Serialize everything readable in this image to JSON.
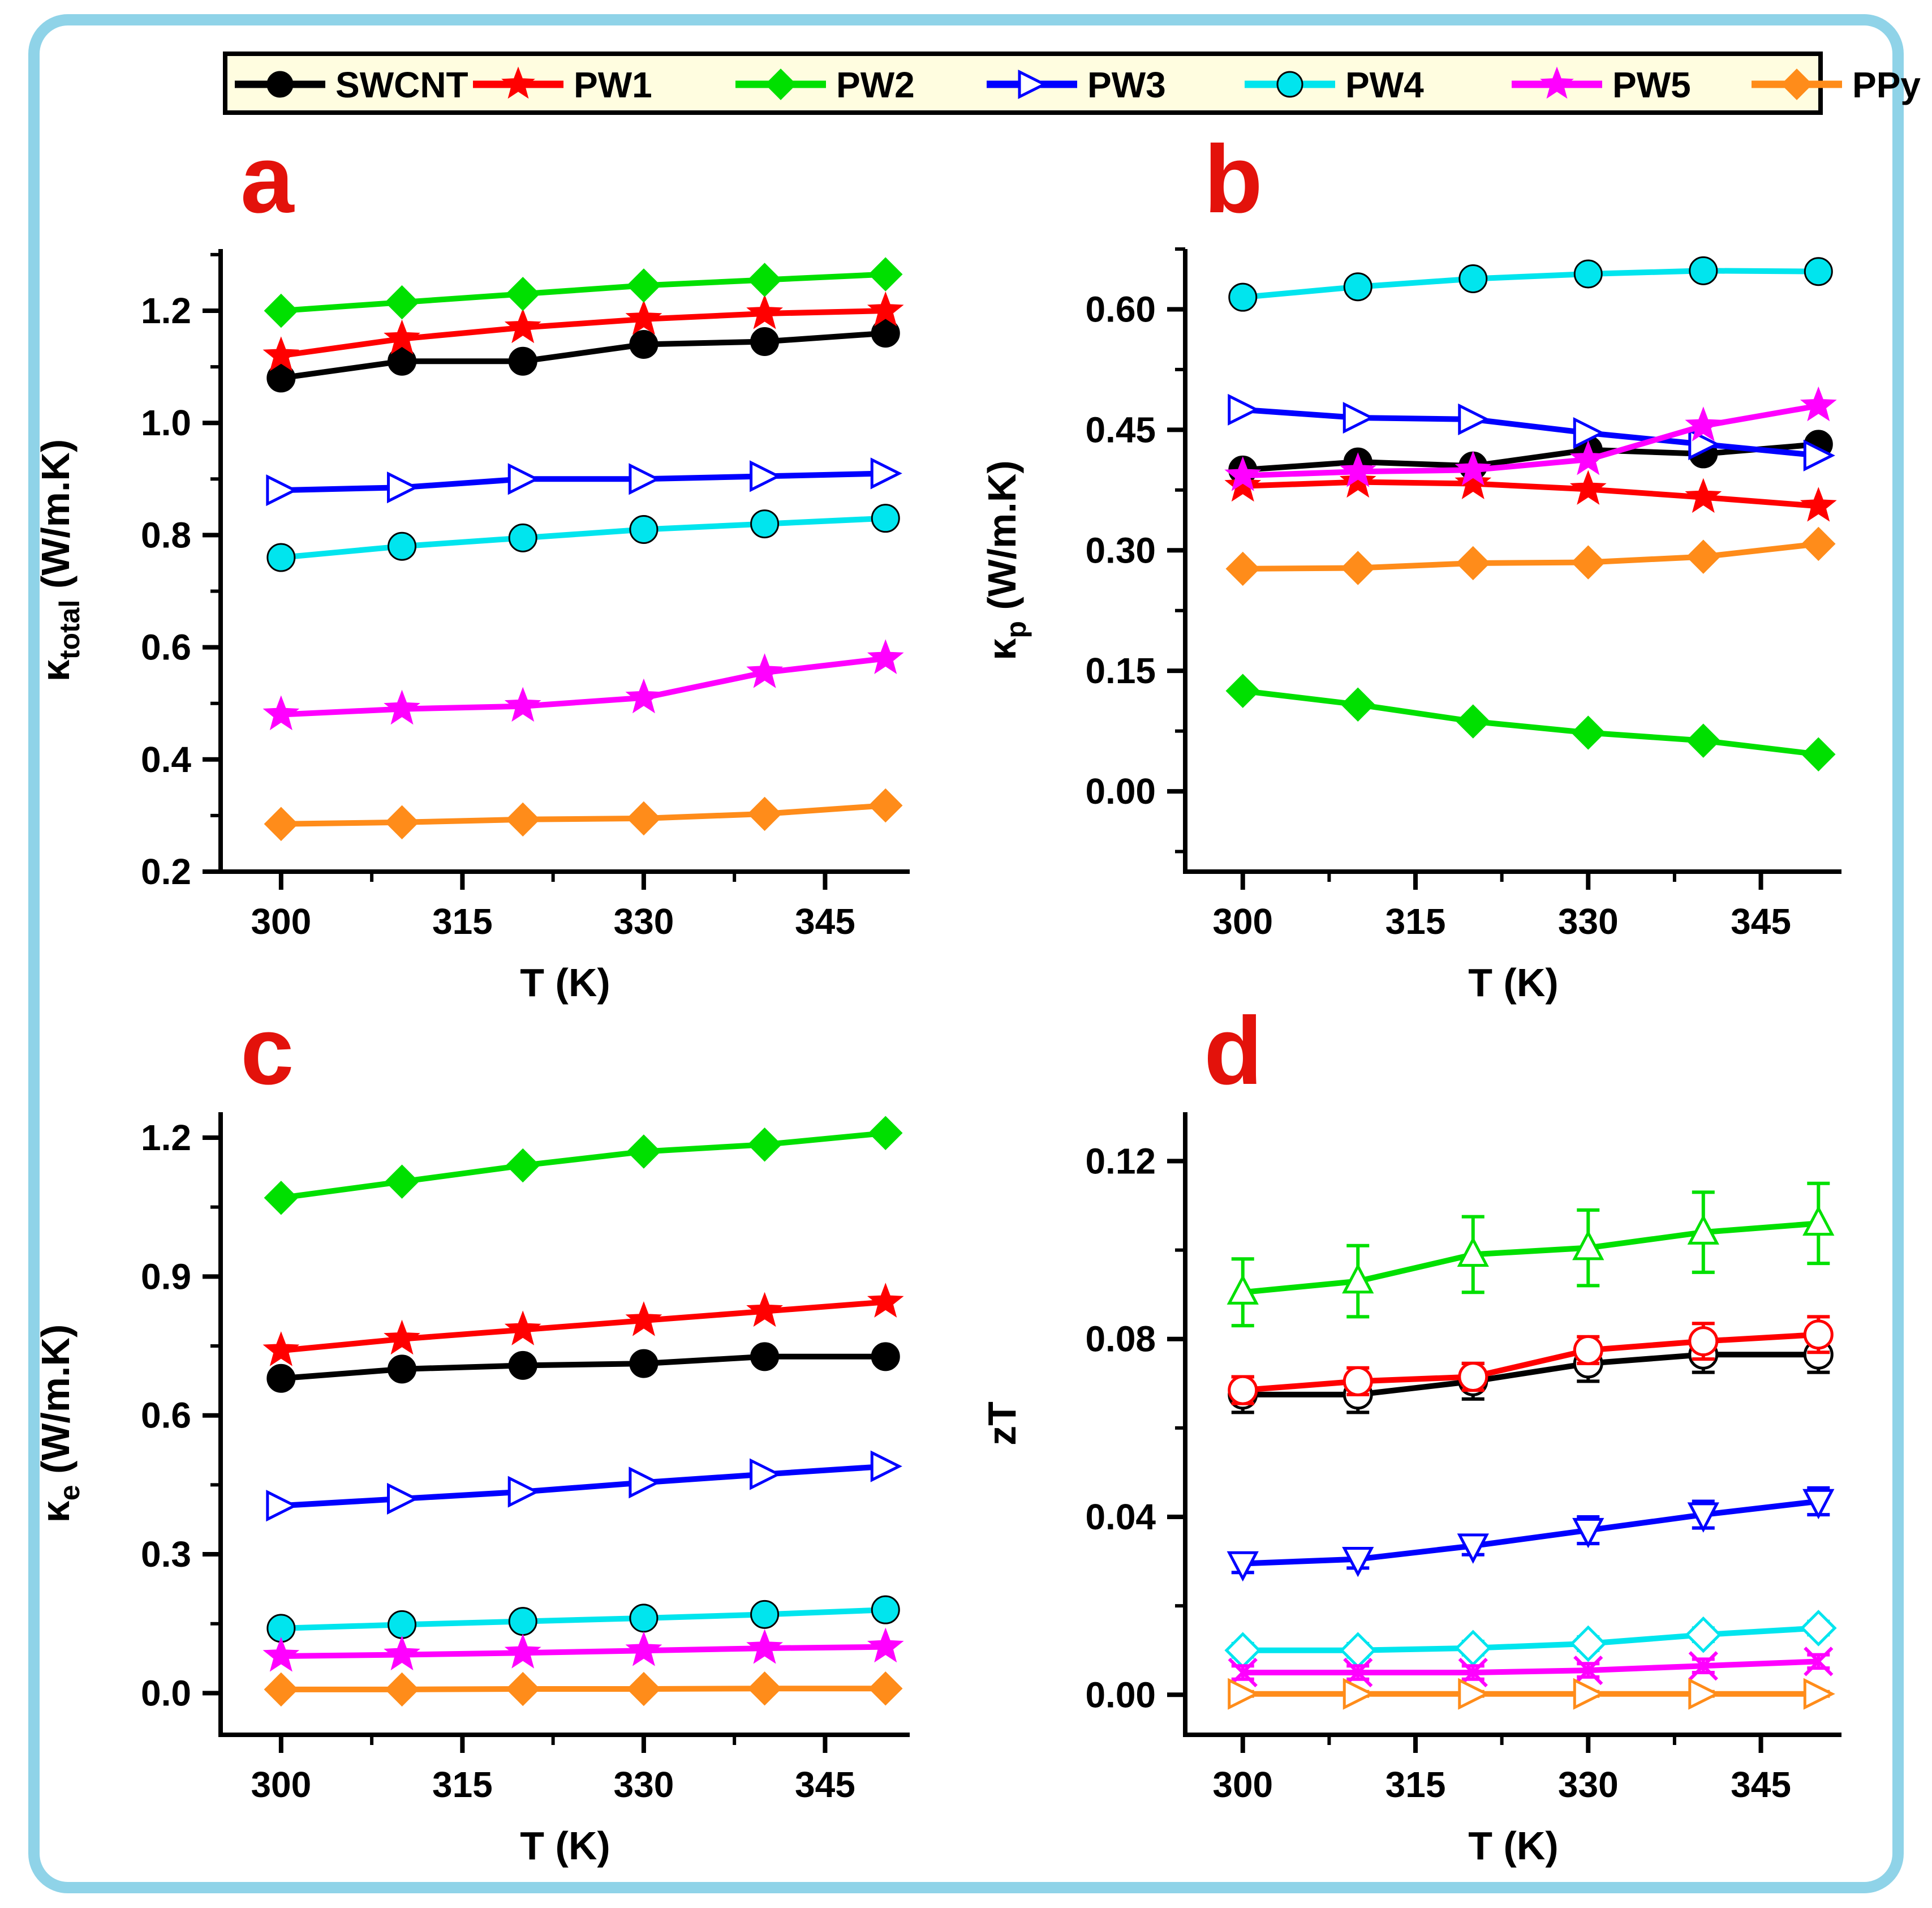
{
  "figure": {
    "border_color": "#8fd3e8",
    "background": "#ffffff",
    "letter_color": "#e3120b"
  },
  "legend": {
    "background": "#fffde0",
    "entries": [
      {
        "label": "SWCNT",
        "color": "#000000",
        "marker": "circle"
      },
      {
        "label": "PW1",
        "color": "#ff0000",
        "marker": "star"
      },
      {
        "label": "PW2",
        "color": "#00e000",
        "marker": "diamond"
      },
      {
        "label": "PW3",
        "color": "#0000ff",
        "marker": "tri-right-open"
      },
      {
        "label": "PW4",
        "color": "#00e5ee",
        "marker": "circle"
      },
      {
        "label": "PW5",
        "color": "#ff00ff",
        "marker": "star"
      },
      {
        "label": "PPy",
        "color": "#ff8c1a",
        "marker": "diamond"
      }
    ]
  },
  "chart_data": [
    {
      "panel": "a",
      "type": "line",
      "xlabel": "T (K)",
      "ylabel_main": "κ",
      "ylabel_sub": "total",
      "ylabel_unit": " (W/m.K)",
      "x": [
        300,
        310,
        320,
        330,
        340,
        350
      ],
      "xlim": [
        295,
        352
      ],
      "xticks": [
        300,
        315,
        330,
        345
      ],
      "ylim": [
        0.2,
        1.31
      ],
      "yticks": [
        0.2,
        0.4,
        0.6,
        0.8,
        1.0,
        1.2
      ],
      "ytick_labels": [
        "0.2",
        "0.4",
        "0.6",
        "0.8",
        "1.0",
        "1.2"
      ],
      "series": [
        {
          "name": "SWCNT",
          "values": [
            1.08,
            1.11,
            1.11,
            1.14,
            1.145,
            1.16
          ]
        },
        {
          "name": "PW1",
          "values": [
            1.12,
            1.15,
            1.17,
            1.185,
            1.195,
            1.2
          ]
        },
        {
          "name": "PW2",
          "values": [
            1.2,
            1.215,
            1.23,
            1.245,
            1.255,
            1.265
          ]
        },
        {
          "name": "PW3",
          "values": [
            0.88,
            0.885,
            0.9,
            0.9,
            0.905,
            0.91
          ]
        },
        {
          "name": "PW4",
          "values": [
            0.76,
            0.78,
            0.795,
            0.81,
            0.82,
            0.83
          ]
        },
        {
          "name": "PW5",
          "values": [
            0.48,
            0.49,
            0.495,
            0.51,
            0.555,
            0.58
          ]
        },
        {
          "name": "PPy",
          "values": [
            0.285,
            0.288,
            0.293,
            0.295,
            0.303,
            0.318
          ]
        }
      ]
    },
    {
      "panel": "b",
      "type": "line",
      "xlabel": "T (K)",
      "ylabel_main": "κ",
      "ylabel_sub": "p",
      "ylabel_unit": " (W/m.K)",
      "x": [
        300,
        310,
        320,
        330,
        340,
        350
      ],
      "xlim": [
        295,
        352
      ],
      "xticks": [
        300,
        315,
        330,
        345
      ],
      "ylim": [
        -0.1,
        0.675
      ],
      "yticks": [
        0.0,
        0.15,
        0.3,
        0.45,
        0.6
      ],
      "ytick_labels": [
        "0.00",
        "0.15",
        "0.30",
        "0.45",
        "0.60"
      ],
      "series": [
        {
          "name": "SWCNT",
          "values": [
            0.4,
            0.41,
            0.405,
            0.425,
            0.42,
            0.432
          ]
        },
        {
          "name": "PW1",
          "values": [
            0.38,
            0.385,
            0.383,
            0.376,
            0.366,
            0.355
          ]
        },
        {
          "name": "PW2",
          "values": [
            0.125,
            0.108,
            0.087,
            0.073,
            0.063,
            0.046
          ]
        },
        {
          "name": "PW3",
          "values": [
            0.475,
            0.465,
            0.463,
            0.446,
            0.432,
            0.418
          ]
        },
        {
          "name": "PW4",
          "values": [
            0.615,
            0.628,
            0.638,
            0.644,
            0.648,
            0.647
          ]
        },
        {
          "name": "PW5",
          "values": [
            0.393,
            0.398,
            0.4,
            0.413,
            0.455,
            0.48
          ]
        },
        {
          "name": "PPy",
          "values": [
            0.277,
            0.278,
            0.284,
            0.285,
            0.292,
            0.308
          ]
        }
      ]
    },
    {
      "panel": "c",
      "type": "line",
      "xlabel": "T (K)",
      "ylabel_main": "κ",
      "ylabel_sub": "e",
      "ylabel_unit": " (W/m.K)",
      "x": [
        300,
        310,
        320,
        330,
        340,
        350
      ],
      "xlim": [
        295,
        352
      ],
      "xticks": [
        300,
        315,
        330,
        345
      ],
      "ylim": [
        -0.09,
        1.255
      ],
      "yticks": [
        0.0,
        0.3,
        0.6,
        0.9,
        1.2
      ],
      "ytick_labels": [
        "0.0",
        "0.3",
        "0.6",
        "0.9",
        "1.2"
      ],
      "series": [
        {
          "name": "SWCNT",
          "values": [
            0.68,
            0.7,
            0.708,
            0.712,
            0.727,
            0.727
          ]
        },
        {
          "name": "PW1",
          "values": [
            0.74,
            0.765,
            0.785,
            0.805,
            0.825,
            0.845
          ]
        },
        {
          "name": "PW2",
          "values": [
            1.07,
            1.105,
            1.14,
            1.17,
            1.185,
            1.21
          ]
        },
        {
          "name": "PW3",
          "values": [
            0.405,
            0.42,
            0.435,
            0.455,
            0.473,
            0.49
          ]
        },
        {
          "name": "PW4",
          "values": [
            0.14,
            0.148,
            0.155,
            0.162,
            0.17,
            0.18
          ]
        },
        {
          "name": "PW5",
          "values": [
            0.08,
            0.083,
            0.087,
            0.092,
            0.097,
            0.1
          ]
        },
        {
          "name": "PPy",
          "values": [
            0.008,
            0.008,
            0.009,
            0.009,
            0.01,
            0.01
          ]
        }
      ]
    },
    {
      "panel": "d",
      "type": "line",
      "xlabel": "T (K)",
      "ylabel_main": "zT",
      "ylabel_sub": "",
      "ylabel_unit": "",
      "x": [
        300,
        310,
        320,
        330,
        340,
        350
      ],
      "xlim": [
        295,
        352
      ],
      "xticks": [
        300,
        315,
        330,
        345
      ],
      "ylim": [
        -0.009,
        0.131
      ],
      "yticks": [
        0.0,
        0.04,
        0.08,
        0.12
      ],
      "ytick_labels": [
        "0.00",
        "0.04",
        "0.08",
        "0.12"
      ],
      "error_bars": true,
      "series": [
        {
          "name": "SWCNT",
          "marker": "circle-open",
          "values": [
            0.0675,
            0.0675,
            0.0705,
            0.0745,
            0.0765,
            0.0765
          ],
          "errors": [
            0.004,
            0.004,
            0.004,
            0.004,
            0.004,
            0.004
          ]
        },
        {
          "name": "PW1",
          "marker": "circle-open",
          "values": [
            0.0685,
            0.0705,
            0.0715,
            0.0775,
            0.0795,
            0.081
          ],
          "errors": [
            0.003,
            0.003,
            0.003,
            0.003,
            0.004,
            0.004
          ]
        },
        {
          "name": "PW2",
          "marker": "tri-up-open",
          "values": [
            0.0905,
            0.093,
            0.099,
            0.1005,
            0.104,
            0.106
          ],
          "errors": [
            0.0075,
            0.008,
            0.0085,
            0.0085,
            0.009,
            0.009
          ]
        },
        {
          "name": "PW3",
          "marker": "tri-down-open",
          "values": [
            0.0295,
            0.0305,
            0.0335,
            0.037,
            0.0405,
            0.0435
          ],
          "errors": [
            0.002,
            0.002,
            0.002,
            0.003,
            0.003,
            0.003
          ]
        },
        {
          "name": "PW4",
          "marker": "diamond-open",
          "values": [
            0.01,
            0.01,
            0.0105,
            0.0115,
            0.0135,
            0.015
          ],
          "errors": [
            0.0015,
            0.0015,
            0.0015,
            0.0015,
            0.0015,
            0.0015
          ]
        },
        {
          "name": "PW5",
          "marker": "x",
          "values": [
            0.005,
            0.005,
            0.005,
            0.0055,
            0.0065,
            0.0075
          ],
          "errors": [
            0.0015,
            0.0015,
            0.0015,
            0.0015,
            0.0015,
            0.0015
          ]
        },
        {
          "name": "PPy",
          "marker": "tri-right-open",
          "values": [
            0.0002,
            0.0002,
            0.0002,
            0.0002,
            0.0002,
            0.0002
          ],
          "errors": [
            0.0005,
            0.0005,
            0.0005,
            0.0005,
            0.0005,
            0.0005
          ]
        }
      ]
    }
  ]
}
